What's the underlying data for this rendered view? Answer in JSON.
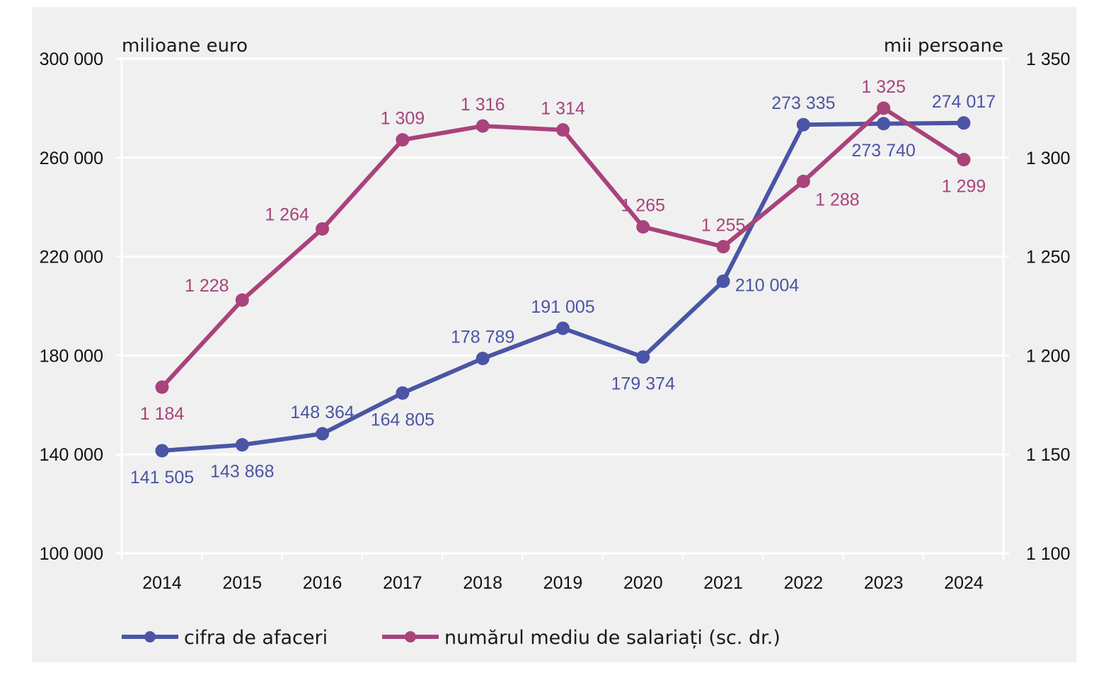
{
  "chart_data": {
    "type": "line",
    "title": "",
    "x": [
      "2014",
      "2015",
      "2016",
      "2017",
      "2018",
      "2019",
      "2020",
      "2021",
      "2022",
      "2023",
      "2024"
    ],
    "y_left": {
      "label": "milioane euro",
      "range": [
        100000,
        300000
      ],
      "ticks": [
        100000,
        140000,
        180000,
        220000,
        260000,
        300000
      ],
      "tick_labels": [
        "100 000",
        "140 000",
        "180 000",
        "220 000",
        "260 000",
        "300 000"
      ]
    },
    "y_right": {
      "label": "mii persoane",
      "range": [
        1100,
        1350
      ],
      "ticks": [
        1100,
        1150,
        1200,
        1250,
        1300,
        1350
      ],
      "tick_labels": [
        "1 100",
        "1 150",
        "1 200",
        "1 250",
        "1 300",
        "1 350"
      ]
    },
    "grid": true,
    "legend_position": "bottom-left",
    "series": [
      {
        "name": "cifra de afaceri",
        "axis": "left",
        "color": "#4b55a5",
        "values": [
          141505,
          143868,
          148364,
          164805,
          178789,
          191005,
          179374,
          210004,
          273335,
          273740,
          274017
        ],
        "labels": [
          "141 505",
          "143 868",
          "148 364",
          "164 805",
          "178 789",
          "191 005",
          "179 374",
          "210 004",
          "273 335",
          "273 740",
          "274 017"
        ],
        "label_side": [
          "below",
          "below",
          "above",
          "below",
          "above",
          "above",
          "below",
          "right",
          "above",
          "below",
          "above"
        ]
      },
      {
        "name": "numărul mediu de salariați (sc. dr.)",
        "axis": "right",
        "color": "#a9437b",
        "values": [
          1184,
          1228,
          1264,
          1309,
          1316,
          1314,
          1265,
          1255,
          1288,
          1325,
          1299
        ],
        "labels": [
          "1 184",
          "1 228",
          "1 264",
          "1 309",
          "1 316",
          "1 314",
          "1 265",
          "1 255",
          "1 288",
          "1 325",
          "1 299"
        ],
        "label_side": [
          "below",
          "above-left",
          "above-left",
          "above",
          "above",
          "above",
          "above",
          "above",
          "below-right",
          "above",
          "below"
        ]
      }
    ]
  }
}
